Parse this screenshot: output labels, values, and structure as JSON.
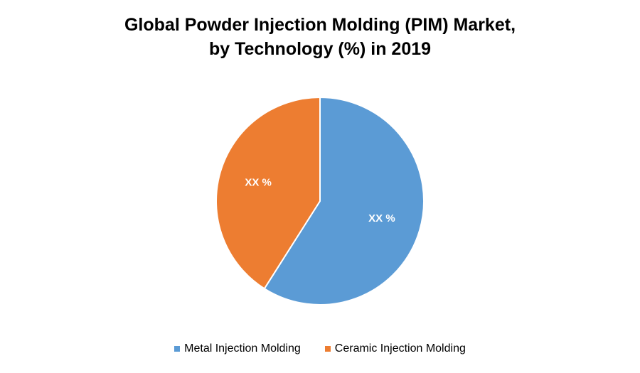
{
  "chart_data": {
    "type": "pie",
    "title_lines": [
      "Global Powder Injection Molding (PIM) Market,",
      "by Technology (%) in 2019"
    ],
    "slices": [
      {
        "name": "Metal Injection Molding",
        "value": 59,
        "label": "XX %",
        "color": "#5b9bd5"
      },
      {
        "name": "Ceramic Injection Molding",
        "value": 41,
        "label": "XX %",
        "color": "#ed7d31"
      }
    ],
    "legend_position": "bottom",
    "start_angle_deg": 0,
    "direction": "clockwise"
  }
}
